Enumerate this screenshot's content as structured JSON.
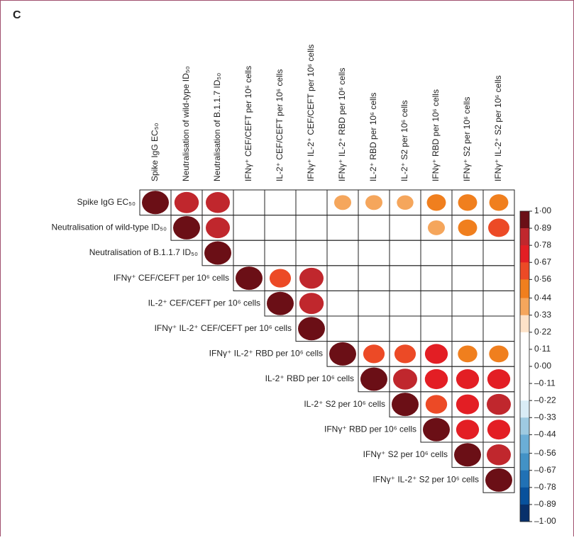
{
  "chart_data": {
    "type": "corrplot",
    "panel_label": "C",
    "variables": [
      "Spike IgG EC₅₀",
      "Neutralisation of wild-type ID₅₀",
      "Neutralisation of B.1.1.7 ID₅₀",
      "IFNγ⁺ CEF/CEFT per 10⁶ cells",
      "IL-2⁺ CEF/CEFT per 10⁶ cells",
      "IFNγ⁺ IL-2⁺ CEF/CEFT per 10⁶ cells",
      "IFNγ⁺ IL-2⁺ RBD per 10⁶ cells",
      "IL-2⁺ RBD per 10⁶ cells",
      "IL-2⁺ S2 per 10⁶ cells",
      "IFNγ⁺ RBD per 10⁶ cells",
      "IFNγ⁺ S2 per 10⁶ cells",
      "IFNγ⁺ IL-2⁺ S2 per 10⁶ cells"
    ],
    "matrix": [
      [
        1,
        0.82,
        0.8,
        null,
        null,
        null,
        0.4,
        0.4,
        0.38,
        0.5,
        0.5,
        0.5
      ],
      [
        null,
        1,
        0.8,
        null,
        null,
        null,
        null,
        null,
        null,
        0.4,
        0.5,
        0.62
      ],
      [
        null,
        null,
        1,
        null,
        null,
        null,
        null,
        null,
        null,
        null,
        null,
        null
      ],
      [
        null,
        null,
        null,
        1,
        0.63,
        0.8,
        null,
        null,
        null,
        null,
        null,
        null
      ],
      [
        null,
        null,
        null,
        null,
        1,
        0.82,
        null,
        null,
        null,
        null,
        null,
        null
      ],
      [
        null,
        null,
        null,
        null,
        null,
        1,
        null,
        null,
        null,
        null,
        null,
        null
      ],
      [
        null,
        null,
        null,
        null,
        null,
        null,
        1,
        0.63,
        0.63,
        0.72,
        0.52,
        0.52
      ],
      [
        null,
        null,
        null,
        null,
        null,
        null,
        null,
        1,
        0.8,
        0.73,
        0.72,
        0.72
      ],
      [
        null,
        null,
        null,
        null,
        null,
        null,
        null,
        null,
        1,
        0.64,
        0.72,
        0.8
      ],
      [
        null,
        null,
        null,
        null,
        null,
        null,
        null,
        null,
        null,
        1,
        0.72,
        0.72
      ],
      [
        null,
        null,
        null,
        null,
        null,
        null,
        null,
        null,
        null,
        null,
        1,
        0.8
      ],
      [
        null,
        null,
        null,
        null,
        null,
        null,
        null,
        null,
        null,
        null,
        null,
        1
      ]
    ],
    "ylim": [
      -1,
      1
    ],
    "yticks": [
      {
        "value": 1,
        "label": "1·00"
      },
      {
        "value": 0.89,
        "label": "0·89"
      },
      {
        "value": 0.78,
        "label": "0·78"
      },
      {
        "value": 0.67,
        "label": "0·67"
      },
      {
        "value": 0.56,
        "label": "0·56"
      },
      {
        "value": 0.44,
        "label": "0·44"
      },
      {
        "value": 0.33,
        "label": "0·33"
      },
      {
        "value": 0.22,
        "label": "0·22"
      },
      {
        "value": 0.11,
        "label": "0·11"
      },
      {
        "value": 0,
        "label": "0·00"
      },
      {
        "value": -0.11,
        "label": "–0·11"
      },
      {
        "value": -0.22,
        "label": "–0·22"
      },
      {
        "value": -0.33,
        "label": "–0·33"
      },
      {
        "value": -0.44,
        "label": "–0·44"
      },
      {
        "value": -0.56,
        "label": "–0·56"
      },
      {
        "value": -0.67,
        "label": "–0·67"
      },
      {
        "value": -0.78,
        "label": "–0·78"
      },
      {
        "value": -0.89,
        "label": "–0·89"
      },
      {
        "value": -1,
        "label": "–1·00"
      }
    ],
    "colors": [
      "#6b0f16",
      "#c0272d",
      "#e31e24",
      "#ec4a26",
      "#f07f1e",
      "#f5a65c",
      "#fde2c8",
      "#ffffff",
      "#ffffff",
      "#ffffff",
      "#ffffff",
      "#d9ecf6",
      "#9ecae1",
      "#6baed6",
      "#4292c6",
      "#2171b5",
      "#08519c",
      "#08306b"
    ]
  }
}
